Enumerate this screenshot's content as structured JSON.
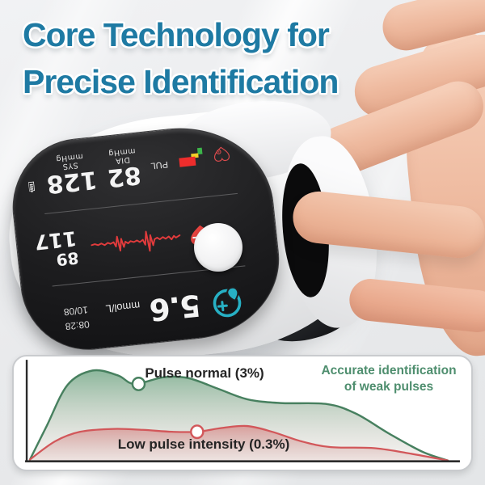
{
  "title": {
    "line1": "Core Technology for",
    "line2": "Precise Identification"
  },
  "device": {
    "display": {
      "bp_row": {
        "pul_label": "PUL",
        "dia_value": "82",
        "dia_label": "DIA",
        "dia_unit": "mmHg",
        "sys_value": "128",
        "sys_label": "SYS",
        "sys_unit": "mmHg"
      },
      "pulse_row": {
        "top_value": "89",
        "bottom_value": "117"
      },
      "glucose_row": {
        "value": "5.6",
        "unit": "mmol/L",
        "time": "08:28",
        "date": "10/08"
      }
    },
    "icons": {
      "glucose": "blood-glucose-icon",
      "pulse": "heart-pulse-icon",
      "bp": "heart-stethoscope-icon",
      "battery": "battery-icon",
      "signal": "signal-steps-icon"
    }
  },
  "chart_panel": {
    "green_label": "Pulse normal (3%)",
    "red_label": "Low pulse intensity (0.3%)",
    "annotation_line1": "Accurate identification",
    "annotation_line2": "of weak pulses"
  },
  "colors": {
    "title_teal": "#1e7aa3",
    "chart_green": "#47805f",
    "chart_red": "#d2575a",
    "annotation_green": "#4e8e6e",
    "bar_green": "#3cb54a",
    "bar_yellow": "#f2d026",
    "bar_red": "#ee2d2c",
    "icon_red": "#e8433f",
    "icon_teal": "#27b0c4"
  },
  "chart_data": {
    "type": "area",
    "title": "",
    "xlabel": "",
    "ylabel": "",
    "grid": false,
    "axes": "L-shaped axis, no tick labels",
    "value_scale": "normalized 0-100 (x left-to-right, y: 0 = max amplitude, 100 = baseline)",
    "series": [
      {
        "name": "Pulse normal (3%)",
        "color": "#47805f",
        "points": [
          [
            0,
            99
          ],
          [
            4,
            64
          ],
          [
            9,
            21
          ],
          [
            15,
            6
          ],
          [
            21,
            11
          ],
          [
            25,
            20
          ],
          [
            32,
            13
          ],
          [
            38,
            14
          ],
          [
            45,
            25
          ],
          [
            52,
            36
          ],
          [
            60,
            40
          ],
          [
            71,
            41
          ],
          [
            78,
            51
          ],
          [
            86,
            72
          ],
          [
            94,
            91
          ],
          [
            100,
            100
          ]
        ],
        "marker": [
          26,
          20
        ]
      },
      {
        "name": "Low pulse intensity (0.3%)",
        "color": "#d2575a",
        "points": [
          [
            0,
            99
          ],
          [
            6,
            80
          ],
          [
            12,
            70
          ],
          [
            20,
            67
          ],
          [
            27,
            68
          ],
          [
            34,
            70
          ],
          [
            40,
            70
          ],
          [
            46,
            66
          ],
          [
            52,
            64
          ],
          [
            58,
            70
          ],
          [
            65,
            80
          ],
          [
            72,
            86
          ],
          [
            82,
            87
          ],
          [
            90,
            92
          ],
          [
            100,
            100
          ]
        ],
        "marker": [
          40,
          70
        ]
      }
    ],
    "annotations": [
      "Accurate identification of weak pulses"
    ]
  }
}
